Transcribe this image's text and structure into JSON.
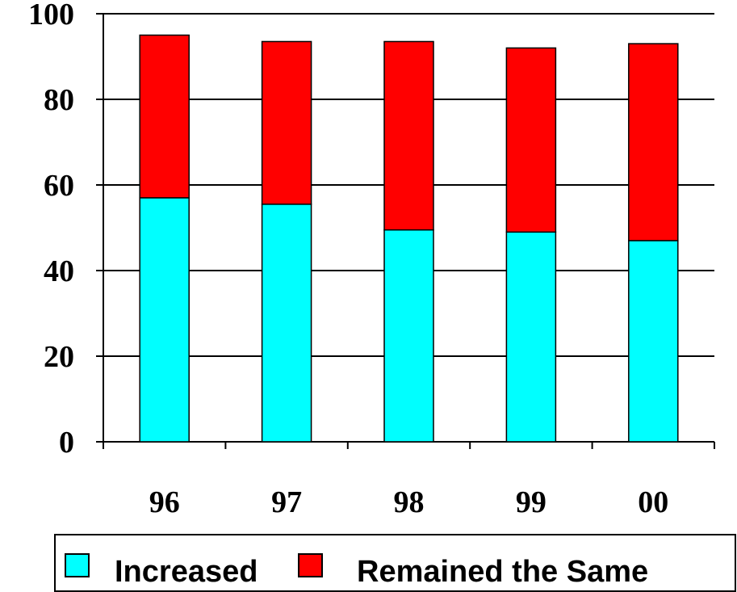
{
  "chart_data": {
    "type": "bar",
    "stacked": true,
    "categories": [
      "96",
      "97",
      "98",
      "99",
      "00"
    ],
    "series": [
      {
        "name": "Increased",
        "color": "#00FFFF",
        "values": [
          57,
          55.5,
          49.5,
          49,
          47
        ]
      },
      {
        "name": "Remained the Same",
        "color": "#FF0000",
        "values": [
          38,
          38,
          44,
          43,
          46
        ]
      }
    ],
    "y_ticks": [
      "0",
      "20",
      "40",
      "60",
      "80",
      "100"
    ],
    "ylim": [
      0,
      100
    ],
    "grid": true,
    "legend_position": "bottom"
  }
}
